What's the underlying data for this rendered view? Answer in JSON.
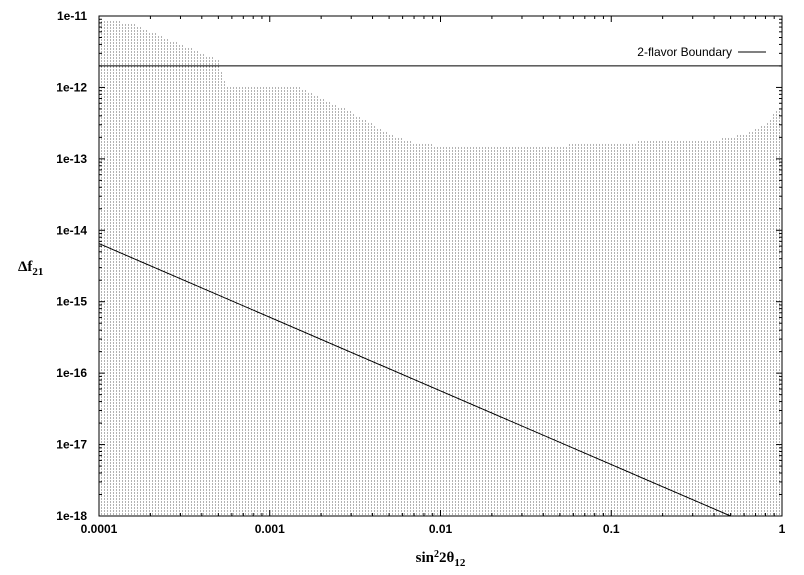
{
  "chart_data": {
    "type": "scatter",
    "title": "",
    "xlabel": {
      "base": "sin",
      "sup": "2",
      "mid": "2θ",
      "sub": "12"
    },
    "ylabel": {
      "base": "Δf",
      "sub": "21"
    },
    "x_scale": "log",
    "y_scale": "log",
    "xlim": [
      0.0001,
      1
    ],
    "ylim": [
      1e-18,
      1e-11
    ],
    "x_ticks": [
      0.0001,
      0.001,
      0.01,
      0.1,
      1
    ],
    "x_tick_labels": [
      "0.0001",
      "0.001",
      "0.01",
      "0.1",
      "1"
    ],
    "y_ticks": [
      1e-18,
      1e-17,
      1e-16,
      1e-15,
      1e-14,
      1e-13,
      1e-12,
      1e-11
    ],
    "y_tick_labels": [
      "1e-18",
      "1e-17",
      "1e-16",
      "1e-15",
      "1e-14",
      "1e-13",
      "1e-12",
      "1e-11"
    ],
    "legend": {
      "position": "top-right",
      "entries": [
        "2-flavor Boundary"
      ]
    },
    "series": [
      {
        "name": "2-flavor Boundary",
        "kind": "line",
        "x": [
          0.0001,
          1
        ],
        "y": [
          2e-12,
          2e-12
        ]
      },
      {
        "kind": "line",
        "x": [
          0.0001,
          0.5
        ],
        "y": [
          6.5e-15,
          1e-18
        ]
      },
      {
        "kind": "scatter-region",
        "description_free": true,
        "x_range": [
          0.0001,
          1
        ],
        "y_min": 1e-18,
        "upper_envelope": {
          "x": [
            0.0001,
            0.00015,
            0.0002,
            0.0003,
            0.0004,
            0.0005,
            0.00055,
            0.0006,
            0.001,
            0.0015,
            0.002,
            0.003,
            0.004,
            0.005,
            0.007,
            0.01,
            0.02,
            0.05,
            0.1,
            0.2,
            0.4,
            0.6,
            0.8,
            0.9,
            1.0
          ],
          "y": [
            9e-12,
            8e-12,
            6e-12,
            4e-12,
            3e-12,
            2.4e-12,
            1e-12,
            1e-12,
            1e-12,
            1e-12,
            7e-13,
            4.5e-13,
            3e-13,
            2.2e-13,
            1.7e-13,
            1.5e-13,
            1.5e-13,
            1.55e-13,
            1.65e-13,
            1.8e-13,
            1.8e-13,
            2.2e-13,
            3e-13,
            4.5e-13,
            6e-13
          ]
        }
      }
    ]
  }
}
